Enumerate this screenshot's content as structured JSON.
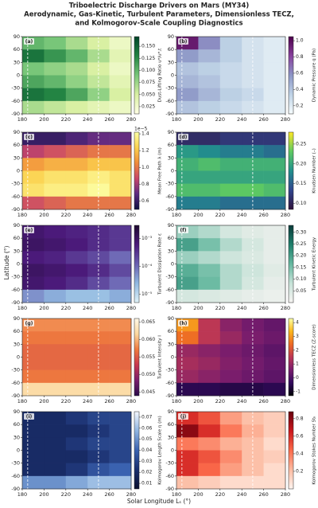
{
  "title": [
    "Triboelectric Discharge Drivers on Mars (MY34)",
    "Aerodynamic, Gas-Kinetic, Turbulent Parameters, Dimensionless TECZ,",
    "and Kolmogorov-Scale Coupling Diagnostics"
  ],
  "xlabel": "Solar Longitude Lₛ (°)",
  "ylabel": "Latitude (°)",
  "chart_data": [
    {
      "type": "heatmap",
      "panel": "(a)",
      "colorbar_label": "Dust-Lifting Ratio u*/u*,t",
      "colors": [
        "#ffffe5",
        "#d9f0a3",
        "#78c679",
        "#238443",
        "#004529"
      ],
      "zlim": [
        0.01,
        0.17
      ],
      "zticks": [
        0.025,
        {
          "value": 0.05,
          "label": "0.050"
        },
        0.075,
        {
          "value": 0.1,
          "label": "0.100"
        },
        0.125,
        {
          "value": 0.15,
          "label": "0.150"
        }
      ],
      "xbins": [
        180,
        200,
        220,
        240,
        260,
        280
      ],
      "ybins": [
        90,
        60,
        30,
        0,
        -30,
        -60,
        -90
      ],
      "xlim": [
        180,
        280
      ],
      "ylim": [
        -90,
        90
      ],
      "xticks": [
        180,
        200,
        220,
        240,
        260,
        280
      ],
      "yticks": [
        -90,
        -60,
        -30,
        0,
        30,
        60,
        90
      ],
      "vlines": [
        185,
        250
      ],
      "values": [
        [
          0.1,
          0.09,
          0.07,
          0.05,
          0.03
        ],
        [
          0.14,
          0.12,
          0.1,
          0.07,
          0.04
        ],
        [
          0.09,
          0.08,
          0.07,
          0.05,
          0.03
        ],
        [
          0.11,
          0.1,
          0.08,
          0.06,
          0.04
        ],
        [
          0.14,
          0.13,
          0.11,
          0.08,
          0.05
        ],
        [
          0.07,
          0.06,
          0.05,
          0.04,
          0.03
        ]
      ]
    },
    {
      "type": "heatmap",
      "panel": "(b)",
      "colorbar_label": "Dynamic Pressure q (Pa)",
      "colors": [
        "#f7fcfd",
        "#bfd3e6",
        "#8c96c6",
        "#88419d",
        "#4d004b"
      ],
      "zlim": [
        0.1,
        1.05
      ],
      "zticks": [
        0.2,
        0.4,
        0.6,
        0.8,
        {
          "value": 1,
          "label": "1.0"
        }
      ],
      "xbins": [
        180,
        200,
        220,
        240,
        260,
        280
      ],
      "ybins": [
        90,
        60,
        30,
        0,
        -30,
        -60,
        -90
      ],
      "xlim": [
        180,
        280
      ],
      "ylim": [
        -90,
        90
      ],
      "xticks": [
        180,
        200,
        220,
        240,
        260,
        280
      ],
      "yticks": [
        -90,
        -60,
        -30,
        0,
        30,
        60,
        90
      ],
      "vlines": [
        185,
        250
      ],
      "values": [
        [
          0.95,
          0.6,
          0.35,
          0.25,
          0.2
        ],
        [
          0.55,
          0.45,
          0.35,
          0.25,
          0.2
        ],
        [
          0.4,
          0.35,
          0.3,
          0.25,
          0.2
        ],
        [
          0.45,
          0.4,
          0.3,
          0.25,
          0.2
        ],
        [
          0.55,
          0.45,
          0.35,
          0.3,
          0.2
        ],
        [
          0.4,
          0.35,
          0.3,
          0.25,
          0.2
        ]
      ]
    },
    {
      "type": "heatmap",
      "panel": "(c)",
      "colorbar_label": "Mean Free Path λ (m)",
      "offset_label": "1e−5",
      "colors": [
        "#0d1040",
        "#5c2a82",
        "#c8466a",
        "#f08a3a",
        "#fbd24e",
        "#fcffa4"
      ],
      "zlim": [
        0.5,
        1.42
      ],
      "zticks": [
        0.6,
        0.8,
        {
          "value": 1,
          "label": "1.0"
        },
        1.2,
        1.4
      ],
      "xbins": [
        180,
        200,
        220,
        240,
        260,
        280
      ],
      "ybins": [
        90,
        60,
        30,
        0,
        -30,
        -60,
        -90
      ],
      "xlim": [
        180,
        280
      ],
      "ylim": [
        -90,
        90
      ],
      "xticks": [
        180,
        200,
        220,
        240,
        260,
        280
      ],
      "yticks": [
        -90,
        -60,
        -30,
        0,
        30,
        60,
        90
      ],
      "vlines": [
        185,
        250
      ],
      "values": [
        [
          0.6,
          0.6,
          0.65,
          0.7,
          0.7
        ],
        [
          0.85,
          0.9,
          0.95,
          1.0,
          1.0
        ],
        [
          1.1,
          1.15,
          1.15,
          1.2,
          1.2
        ],
        [
          1.25,
          1.3,
          1.3,
          1.35,
          1.3
        ],
        [
          1.3,
          1.35,
          1.35,
          1.4,
          1.3
        ],
        [
          0.9,
          0.95,
          1.0,
          1.0,
          1.0
        ]
      ]
    },
    {
      "type": "heatmap",
      "panel": "(d)",
      "colorbar_label": "Knudsen Number (–)",
      "colors": [
        "#30123b",
        "#31468f",
        "#21908d",
        "#5ec962",
        "#fde725"
      ],
      "zlim": [
        0.085,
        0.28
      ],
      "zticks": [
        {
          "value": 0.1,
          "label": "0.10"
        },
        0.15,
        {
          "value": 0.2,
          "label": "0.20"
        },
        0.25
      ],
      "xbins": [
        180,
        200,
        220,
        240,
        260,
        280
      ],
      "ybins": [
        90,
        60,
        30,
        0,
        -30,
        -60,
        -90
      ],
      "xlim": [
        180,
        280
      ],
      "ylim": [
        -90,
        90
      ],
      "xticks": [
        180,
        200,
        220,
        240,
        260,
        280
      ],
      "yticks": [
        -90,
        -60,
        -30,
        0,
        30,
        60,
        90
      ],
      "vlines": [
        185,
        250
      ],
      "values": [
        [
          0.11,
          0.11,
          0.12,
          0.12,
          0.12
        ],
        [
          0.19,
          0.18,
          0.17,
          0.17,
          0.16
        ],
        [
          0.21,
          0.22,
          0.21,
          0.21,
          0.21
        ],
        [
          0.2,
          0.2,
          0.2,
          0.2,
          0.2
        ],
        [
          0.22,
          0.22,
          0.23,
          0.23,
          0.22
        ],
        [
          0.17,
          0.17,
          0.16,
          0.16,
          0.16
        ]
      ]
    },
    {
      "type": "heatmap",
      "panel": "(e)",
      "colorbar_label": "Turbulent Dissipation Rate ε",
      "log_scale": true,
      "colors": [
        "#e0f3f8",
        "#8fb8e0",
        "#6a5fb0",
        "#4b1a7a",
        "#1f0a30"
      ],
      "zlim": [
        5e-06,
        0.003
      ],
      "zticks": [
        {
          "value": 1e-05,
          "label": "10⁻⁵"
        },
        {
          "value": 0.0001,
          "label": "10⁻⁴"
        },
        {
          "value": 0.001,
          "label": "10⁻³"
        }
      ],
      "xbins": [
        180,
        200,
        220,
        240,
        260,
        280
      ],
      "ybins": [
        90,
        60,
        30,
        0,
        -30,
        -60,
        -90
      ],
      "xlim": [
        180,
        280
      ],
      "ylim": [
        -90,
        90
      ],
      "xticks": [
        180,
        200,
        220,
        240,
        260,
        280
      ],
      "yticks": [
        -90,
        -60,
        -30,
        0,
        30,
        60,
        90
      ],
      "vlines": [
        185,
        250
      ],
      "values": [
        [
          0.0008,
          0.0006,
          0.0005,
          0.0004,
          0.0003
        ],
        [
          0.001,
          0.0008,
          0.0006,
          0.0004,
          0.0003
        ],
        [
          0.0006,
          0.0005,
          0.0003,
          0.0002,
          0.0001
        ],
        [
          0.001,
          0.0008,
          0.0006,
          0.0004,
          0.0002
        ],
        [
          0.0008,
          0.0006,
          0.0004,
          0.0002,
          0.0001
        ],
        [
          5e-05,
          3e-05,
          2e-05,
          2e-05,
          3e-05
        ]
      ]
    },
    {
      "type": "heatmap",
      "panel": "(f)",
      "colorbar_label": "Turbulent Kinetic Energy",
      "colors": [
        "#f7f4f2",
        "#c7e2d8",
        "#66b8a0",
        "#1f7f6b",
        "#0a3b3a"
      ],
      "zlim": [
        0,
        0.33
      ],
      "zticks": [
        0.05,
        {
          "value": 0.1,
          "label": "0.10"
        },
        0.15,
        {
          "value": 0.2,
          "label": "0.20"
        },
        0.25,
        {
          "value": 0.3,
          "label": "0.30"
        }
      ],
      "xbins": [
        180,
        200,
        220,
        240,
        260,
        280
      ],
      "ybins": [
        90,
        60,
        30,
        0,
        -30,
        -60,
        -90
      ],
      "xlim": [
        180,
        280
      ],
      "ylim": [
        -90,
        90
      ],
      "xticks": [
        180,
        200,
        220,
        240,
        260,
        280
      ],
      "yticks": [
        -90,
        -60,
        -30,
        0,
        30,
        60,
        90
      ],
      "vlines": [
        185,
        250
      ],
      "values": [
        [
          0.12,
          0.1,
          0.06,
          0.04,
          0.03
        ],
        [
          0.2,
          0.15,
          0.1,
          0.06,
          0.03
        ],
        [
          0.12,
          0.1,
          0.07,
          0.05,
          0.03
        ],
        [
          0.18,
          0.15,
          0.1,
          0.07,
          0.04
        ],
        [
          0.2,
          0.16,
          0.1,
          0.06,
          0.03
        ],
        [
          0.06,
          0.05,
          0.04,
          0.03,
          0.02
        ]
      ]
    },
    {
      "type": "heatmap",
      "panel": "(g)",
      "colorbar_label": "Turbulent Intensity I",
      "colors": [
        "#2a0b4a",
        "#7a1d6d",
        "#c8384f",
        "#ef7a3e",
        "#fcd9a0",
        "#fff8e8"
      ],
      "zlim": [
        0.044,
        0.066
      ],
      "zticks": [
        0.045,
        {
          "value": 0.05,
          "label": "0.050"
        },
        0.055,
        {
          "value": 0.06,
          "label": "0.060"
        },
        0.065
      ],
      "xbins": [
        180,
        200,
        220,
        240,
        260,
        280
      ],
      "ybins": [
        90,
        60,
        30,
        0,
        -30,
        -60,
        -90
      ],
      "xlim": [
        180,
        280
      ],
      "ylim": [
        -90,
        90
      ],
      "xticks": [
        180,
        200,
        220,
        240,
        260,
        280
      ],
      "yticks": [
        -90,
        -60,
        -30,
        0,
        30,
        60,
        90
      ],
      "vlines": [
        185,
        250
      ],
      "values": [
        [
          0.058,
          0.058,
          0.058,
          0.058,
          0.058
        ],
        [
          0.057,
          0.057,
          0.057,
          0.057,
          0.057
        ],
        [
          0.056,
          0.056,
          0.056,
          0.056,
          0.056
        ],
        [
          0.056,
          0.056,
          0.056,
          0.056,
          0.056
        ],
        [
          0.057,
          0.057,
          0.057,
          0.057,
          0.057
        ],
        [
          0.062,
          0.062,
          0.062,
          0.062,
          0.062
        ]
      ]
    },
    {
      "type": "heatmap",
      "panel": "(h)",
      "colorbar_label": "Dimensionless TECZ (Z-score)",
      "colors": [
        "#000004",
        "#320a5e",
        "#781c6d",
        "#bc3754",
        "#ed6925",
        "#fbb61a",
        "#fcffa4"
      ],
      "zlim": [
        -1.3,
        4.3
      ],
      "zticks": [
        -1,
        0,
        1,
        2,
        3,
        4
      ],
      "xbins": [
        180,
        200,
        220,
        240,
        260,
        280
      ],
      "ybins": [
        90,
        60,
        30,
        0,
        -30,
        -60,
        -90
      ],
      "xlim": [
        180,
        280
      ],
      "ylim": [
        -90,
        90
      ],
      "xticks": [
        180,
        200,
        220,
        240,
        260,
        280
      ],
      "yticks": [
        -90,
        -60,
        -30,
        0,
        30,
        60,
        90
      ],
      "vlines": [
        185,
        250
      ],
      "values": [
        [
          3.0,
          1.5,
          0.8,
          0.5,
          0.3
        ],
        [
          2.5,
          1.5,
          1.0,
          0.6,
          0.4
        ],
        [
          1.0,
          0.8,
          0.6,
          0.4,
          0.2
        ],
        [
          1.2,
          1.0,
          0.7,
          0.5,
          0.3
        ],
        [
          1.0,
          0.8,
          0.6,
          0.4,
          0.2
        ],
        [
          -0.5,
          -0.5,
          -0.6,
          -0.6,
          -0.5
        ]
      ]
    },
    {
      "type": "heatmap",
      "panel": "(i)",
      "colorbar_label": "Kolmogorov Length Scale η (m)",
      "colors": [
        "#0a1030",
        "#1a2f6e",
        "#3a62b0",
        "#8fb4e0",
        "#f4f8ff"
      ],
      "zlim": [
        0.005,
        0.075
      ],
      "zticks": [
        0.01,
        0.02,
        0.03,
        0.04,
        0.05,
        0.06,
        0.07
      ],
      "xbins": [
        180,
        200,
        220,
        240,
        260,
        280
      ],
      "ybins": [
        90,
        60,
        30,
        0,
        -30,
        -60,
        -90
      ],
      "xlim": [
        180,
        280
      ],
      "ylim": [
        -90,
        90
      ],
      "xticks": [
        180,
        200,
        220,
        240,
        260,
        280
      ],
      "yticks": [
        -90,
        -60,
        -30,
        0,
        30,
        60,
        90
      ],
      "vlines": [
        185,
        250
      ],
      "values": [
        [
          0.02,
          0.02,
          0.025,
          0.03,
          0.03
        ],
        [
          0.02,
          0.02,
          0.02,
          0.025,
          0.03
        ],
        [
          0.02,
          0.02,
          0.025,
          0.03,
          0.03
        ],
        [
          0.02,
          0.02,
          0.02,
          0.025,
          0.03
        ],
        [
          0.02,
          0.02,
          0.025,
          0.035,
          0.04
        ],
        [
          0.05,
          0.05,
          0.055,
          0.06,
          0.06
        ]
      ]
    },
    {
      "type": "heatmap",
      "panel": "(j)",
      "colorbar_label": "Kolmogorov Stokes Number Stₖ",
      "colors": [
        "#fff5f0",
        "#fcbba1",
        "#fb6a4a",
        "#cb181d",
        "#67000d"
      ],
      "zlim": [
        0,
        0.88
      ],
      "zticks": [
        0.2,
        0.4,
        0.6,
        0.8
      ],
      "xbins": [
        180,
        200,
        220,
        240,
        260,
        280
      ],
      "ybins": [
        90,
        60,
        30,
        0,
        -30,
        -60,
        -90
      ],
      "xlim": [
        180,
        280
      ],
      "ylim": [
        -90,
        90
      ],
      "xticks": [
        180,
        200,
        220,
        240,
        260,
        280
      ],
      "yticks": [
        -90,
        -60,
        -30,
        0,
        30,
        60,
        90
      ],
      "vlines": [
        185,
        250
      ],
      "values": [
        [
          0.6,
          0.5,
          0.3,
          0.2,
          0.15
        ],
        [
          0.8,
          0.6,
          0.4,
          0.25,
          0.15
        ],
        [
          0.4,
          0.35,
          0.25,
          0.2,
          0.1
        ],
        [
          0.6,
          0.5,
          0.35,
          0.2,
          0.15
        ],
        [
          0.6,
          0.45,
          0.3,
          0.2,
          0.1
        ],
        [
          0.2,
          0.15,
          0.1,
          0.1,
          0.1
        ]
      ]
    }
  ]
}
